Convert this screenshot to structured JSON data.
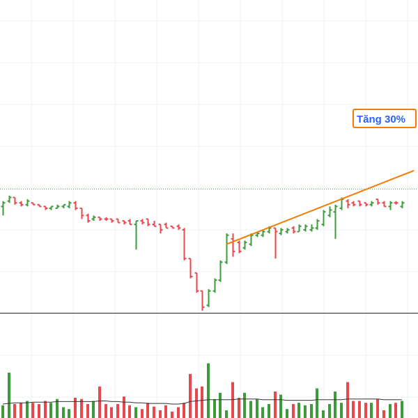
{
  "colors": {
    "up": "#3d9b3d",
    "down": "#e5484d",
    "trend": "#f57c00",
    "volume_ma": "#333333",
    "grid": "#eef0f3",
    "separator": "#222222",
    "reference_line": "#4caf50",
    "annotation_text": "#2962ff",
    "annotation_bg": "#ffffff"
  },
  "annotation": {
    "label": "Tăng 30%"
  },
  "chart_data": [
    {
      "type": "ohlc",
      "panel": "price",
      "grid": true,
      "ylim": [
        0,
        100
      ],
      "reference_line": 68,
      "bars": [
        {
          "dir": "up",
          "o": 58,
          "h": 61,
          "l": 53,
          "c": 60
        },
        {
          "dir": "up",
          "o": 61,
          "h": 64,
          "l": 60,
          "c": 63
        },
        {
          "dir": "down",
          "o": 63,
          "h": 63,
          "l": 59,
          "c": 60
        },
        {
          "dir": "down",
          "o": 60,
          "h": 61,
          "l": 58,
          "c": 59
        },
        {
          "dir": "up",
          "o": 59,
          "h": 62,
          "l": 58,
          "c": 61
        },
        {
          "dir": "down",
          "o": 60,
          "h": 60,
          "l": 59,
          "c": 59
        },
        {
          "dir": "down",
          "o": 59,
          "h": 59,
          "l": 58,
          "c": 58
        },
        {
          "dir": "down",
          "o": 58,
          "h": 58,
          "l": 56,
          "c": 57
        },
        {
          "dir": "up",
          "o": 57,
          "h": 58,
          "l": 56,
          "c": 58
        },
        {
          "dir": "up",
          "o": 57,
          "h": 59,
          "l": 57,
          "c": 58
        },
        {
          "dir": "up",
          "o": 58,
          "h": 59,
          "l": 57,
          "c": 59
        },
        {
          "dir": "up",
          "o": 58,
          "h": 61,
          "l": 57,
          "c": 60
        },
        {
          "dir": "down",
          "o": 60,
          "h": 61,
          "l": 56,
          "c": 57
        },
        {
          "dir": "down",
          "o": 57,
          "h": 57,
          "l": 51,
          "c": 53
        },
        {
          "dir": "down",
          "o": 53,
          "h": 54,
          "l": 49,
          "c": 50
        },
        {
          "dir": "up",
          "o": 51,
          "h": 53,
          "l": 50,
          "c": 52
        },
        {
          "dir": "down",
          "o": 52,
          "h": 52,
          "l": 50,
          "c": 51
        },
        {
          "dir": "down",
          "o": 51,
          "h": 52,
          "l": 50,
          "c": 51
        },
        {
          "dir": "down",
          "o": 51,
          "h": 51,
          "l": 49,
          "c": 50
        },
        {
          "dir": "down",
          "o": 51,
          "h": 51,
          "l": 49,
          "c": 49
        },
        {
          "dir": "down",
          "o": 50,
          "h": 50,
          "l": 48,
          "c": 49
        },
        {
          "dir": "down",
          "o": 50,
          "h": 51,
          "l": 48,
          "c": 48
        },
        {
          "dir": "up",
          "o": 48,
          "h": 50,
          "l": 34,
          "c": 50
        },
        {
          "dir": "down",
          "o": 50,
          "h": 51,
          "l": 48,
          "c": 49
        },
        {
          "dir": "down",
          "o": 51,
          "h": 51,
          "l": 47,
          "c": 48
        },
        {
          "dir": "down",
          "o": 48,
          "h": 50,
          "l": 47,
          "c": 47
        },
        {
          "dir": "down",
          "o": 48,
          "h": 48,
          "l": 43,
          "c": 45
        },
        {
          "dir": "down",
          "o": 48,
          "h": 49,
          "l": 46,
          "c": 46
        },
        {
          "dir": "down",
          "o": 47,
          "h": 47,
          "l": 46,
          "c": 46
        },
        {
          "dir": "down",
          "o": 47,
          "h": 48,
          "l": 45,
          "c": 46
        },
        {
          "dir": "down",
          "o": 45,
          "h": 46,
          "l": 28,
          "c": 29
        },
        {
          "dir": "down",
          "o": 29,
          "h": 29,
          "l": 18,
          "c": 19
        },
        {
          "dir": "down",
          "o": 21,
          "h": 21,
          "l": 10,
          "c": 11
        },
        {
          "dir": "down",
          "o": 11,
          "h": 11,
          "l": 0,
          "c": 2
        },
        {
          "dir": "up",
          "o": 3,
          "h": 12,
          "l": 2,
          "c": 11
        },
        {
          "dir": "up",
          "o": 11,
          "h": 18,
          "l": 10,
          "c": 17
        },
        {
          "dir": "up",
          "o": 17,
          "h": 28,
          "l": 16,
          "c": 27
        },
        {
          "dir": "up",
          "o": 27,
          "h": 43,
          "l": 26,
          "c": 42
        },
        {
          "dir": "down",
          "o": 40,
          "h": 43,
          "l": 30,
          "c": 33
        },
        {
          "dir": "down",
          "o": 38,
          "h": 39,
          "l": 32,
          "c": 33
        },
        {
          "dir": "up",
          "o": 35,
          "h": 39,
          "l": 34,
          "c": 38
        },
        {
          "dir": "up",
          "o": 37,
          "h": 43,
          "l": 36,
          "c": 42
        },
        {
          "dir": "up",
          "o": 42,
          "h": 44,
          "l": 41,
          "c": 43
        },
        {
          "dir": "up",
          "o": 42,
          "h": 45,
          "l": 41,
          "c": 44
        },
        {
          "dir": "up",
          "o": 44,
          "h": 47,
          "l": 43,
          "c": 46
        },
        {
          "dir": "down",
          "o": 46,
          "h": 46,
          "l": 29,
          "c": 44
        },
        {
          "dir": "up",
          "o": 43,
          "h": 46,
          "l": 42,
          "c": 45
        },
        {
          "dir": "up",
          "o": 44,
          "h": 46,
          "l": 43,
          "c": 45
        },
        {
          "dir": "down",
          "o": 46,
          "h": 47,
          "l": 43,
          "c": 44
        },
        {
          "dir": "up",
          "o": 44,
          "h": 48,
          "l": 44,
          "c": 47
        },
        {
          "dir": "up",
          "o": 45,
          "h": 48,
          "l": 44,
          "c": 47
        },
        {
          "dir": "up",
          "o": 45,
          "h": 48,
          "l": 44,
          "c": 46
        },
        {
          "dir": "up",
          "o": 46,
          "h": 51,
          "l": 45,
          "c": 50
        },
        {
          "dir": "up",
          "o": 48,
          "h": 56,
          "l": 47,
          "c": 55
        },
        {
          "dir": "up",
          "o": 53,
          "h": 58,
          "l": 52,
          "c": 56
        },
        {
          "dir": "up",
          "o": 55,
          "h": 59,
          "l": 40,
          "c": 58
        },
        {
          "dir": "up",
          "o": 57,
          "h": 63,
          "l": 56,
          "c": 62
        },
        {
          "dir": "down",
          "o": 61,
          "h": 62,
          "l": 57,
          "c": 59
        },
        {
          "dir": "down",
          "o": 60,
          "h": 61,
          "l": 58,
          "c": 59
        },
        {
          "dir": "down",
          "o": 61,
          "h": 61,
          "l": 58,
          "c": 59
        },
        {
          "dir": "down",
          "o": 60,
          "h": 60,
          "l": 58,
          "c": 59
        },
        {
          "dir": "up",
          "o": 59,
          "h": 61,
          "l": 58,
          "c": 60
        },
        {
          "dir": "down",
          "o": 62,
          "h": 62,
          "l": 59,
          "c": 60
        },
        {
          "dir": "down",
          "o": 60,
          "h": 61,
          "l": 58,
          "c": 58
        },
        {
          "dir": "up",
          "o": 58,
          "h": 61,
          "l": 56,
          "c": 60
        },
        {
          "dir": "down",
          "o": 60,
          "h": 61,
          "l": 59,
          "c": 60
        },
        {
          "dir": "up",
          "o": 58,
          "h": 61,
          "l": 57,
          "c": 60
        }
      ],
      "trendline": {
        "from": {
          "bar": 37,
          "value": 37
        },
        "to": {
          "bar": 68,
          "value": 78
        }
      }
    },
    {
      "type": "bar",
      "panel": "volume",
      "ylim": [
        0,
        100
      ],
      "values": [
        18,
        70,
        20,
        22,
        25,
        22,
        20,
        25,
        22,
        28,
        15,
        12,
        30,
        28,
        20,
        25,
        48,
        20,
        15,
        20,
        32,
        18,
        15,
        12,
        22,
        16,
        10,
        18,
        8,
        15,
        22,
        68,
        45,
        48,
        85,
        28,
        38,
        10,
        55,
        30,
        38,
        25,
        28,
        15,
        20,
        40,
        35,
        12,
        20,
        22,
        18,
        20,
        45,
        10,
        20,
        40,
        22,
        55,
        25,
        25,
        22,
        22,
        28,
        10,
        20,
        22,
        25
      ],
      "ma_values": [
        20,
        21,
        22,
        22,
        22,
        23,
        23,
        23,
        23,
        24,
        24,
        24,
        24,
        24,
        24,
        24,
        25,
        25,
        24,
        24,
        23,
        23,
        22,
        22,
        21,
        21,
        21,
        21,
        20,
        20,
        21,
        24,
        25,
        26,
        27,
        27,
        27,
        27,
        27,
        28,
        28,
        28,
        28,
        27,
        27,
        27,
        27,
        26,
        26,
        26,
        26,
        26,
        27,
        27,
        27,
        27,
        27,
        28,
        28,
        28,
        28,
        28,
        28,
        27,
        27,
        27,
        27
      ]
    }
  ]
}
